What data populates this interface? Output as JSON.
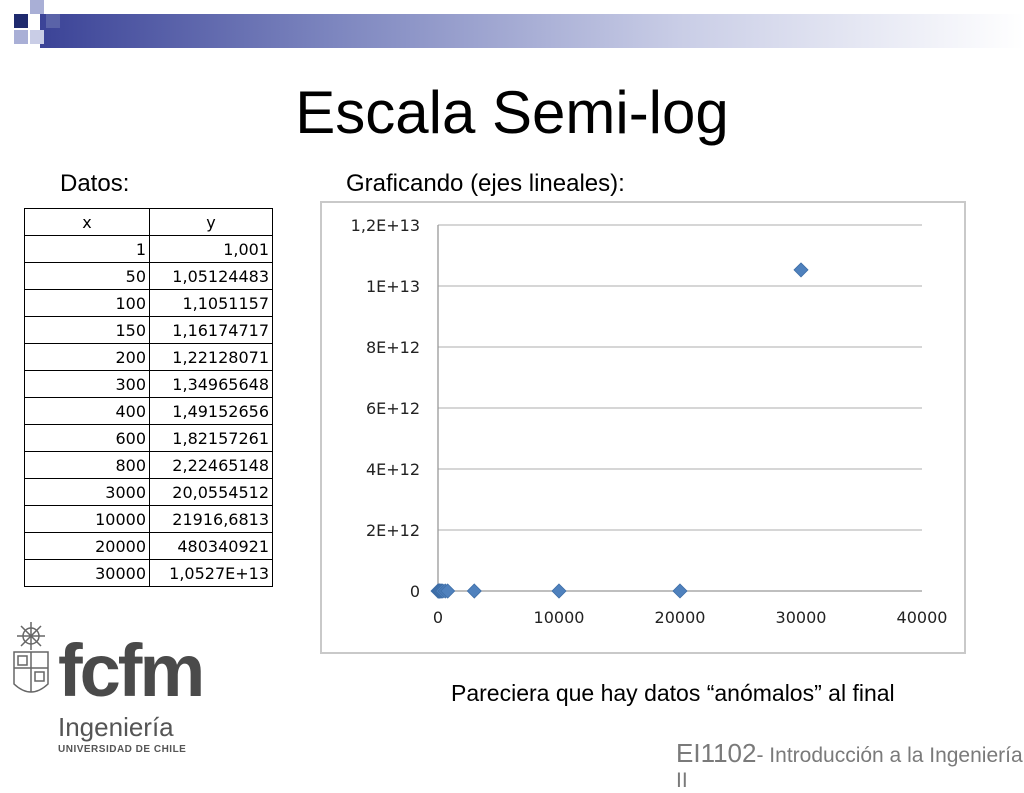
{
  "title": "Escala Semi-log",
  "datos_label": "Datos:",
  "graf_label": "Graficando (ejes lineales):",
  "table": {
    "headers": [
      "x",
      "y"
    ],
    "rows": [
      [
        "1",
        "1,001"
      ],
      [
        "50",
        "1,05124483"
      ],
      [
        "100",
        "1,1051157"
      ],
      [
        "150",
        "1,16174717"
      ],
      [
        "200",
        "1,22128071"
      ],
      [
        "300",
        "1,34965648"
      ],
      [
        "400",
        "1,49152656"
      ],
      [
        "600",
        "1,82157261"
      ],
      [
        "800",
        "2,22465148"
      ],
      [
        "3000",
        "20,0554512"
      ],
      [
        "10000",
        "21916,6813"
      ],
      [
        "20000",
        "480340921"
      ],
      [
        "30000",
        "1,0527E+13"
      ]
    ]
  },
  "chart_data": {
    "type": "scatter",
    "x": [
      1,
      50,
      100,
      150,
      200,
      300,
      400,
      600,
      800,
      3000,
      10000,
      20000,
      30000
    ],
    "y": [
      1.001,
      1.05124483,
      1.1051157,
      1.16174717,
      1.22128071,
      1.34965648,
      1.49152656,
      1.82157261,
      2.22465148,
      20.0554512,
      21916.6813,
      480340921,
      10527000000000
    ],
    "xlim": [
      0,
      40000
    ],
    "ylim": [
      0,
      12000000000000
    ],
    "xticks": [
      0,
      10000,
      20000,
      30000,
      40000
    ],
    "xtick_labels": [
      "0",
      "10000",
      "20000",
      "30000",
      "40000"
    ],
    "yticks": [
      0,
      2000000000000,
      4000000000000,
      6000000000000,
      8000000000000,
      10000000000000,
      12000000000000
    ],
    "ytick_labels": [
      "0",
      "2E+12",
      "4E+12",
      "6E+12",
      "8E+12",
      "1E+13",
      "1,2E+13"
    ],
    "grid": "horizontal",
    "marker": "diamond",
    "marker_color": "#4f81bd",
    "grid_color": "#bdbdbd"
  },
  "note": "Pareciera que hay datos “anómalos” al final",
  "course": {
    "code": "EI1102",
    "text": "- Introducción a la Ingeniería II"
  },
  "logo": {
    "fcfm": "fcfm",
    "ingenieria": "Ingeniería",
    "universidad": "UNIVERSIDAD DE CHILE"
  },
  "colors": {
    "accent_dark": "#1f2a6e",
    "accent_mid": "#5a63a8",
    "accent_light": "#a9afd6"
  }
}
